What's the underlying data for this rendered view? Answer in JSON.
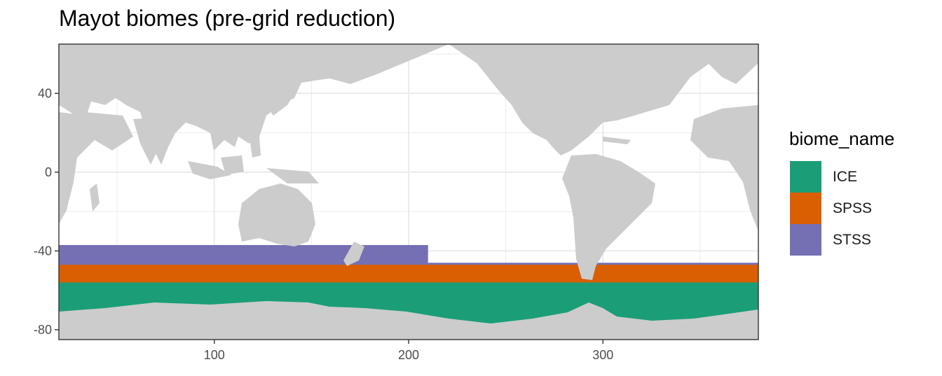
{
  "title": "Mayot biomes (pre-grid reduction)",
  "map": {
    "x_range": [
      20,
      380
    ],
    "y_range": [
      -85,
      65
    ],
    "x_ticks": [
      100,
      200,
      300
    ],
    "y_ticks": [
      40,
      0,
      -40,
      -80
    ],
    "x_tick_labels": [
      "100",
      "200",
      "300"
    ],
    "y_tick_labels": [
      "40",
      "0",
      "-40",
      "-80"
    ],
    "land_color": "#cccccc",
    "grid": true,
    "panel_border": true
  },
  "biome_bands": [
    {
      "name": "STSS",
      "lon_range": [
        20,
        210
      ],
      "lat_range": [
        -48,
        -37
      ],
      "color": "#7570b3"
    },
    {
      "name": "STSS",
      "lon_range": [
        210,
        380
      ],
      "lat_range": [
        -55,
        -46
      ],
      "color": "#7570b3"
    },
    {
      "name": "SPSS",
      "lon_range": [
        20,
        380
      ],
      "lat_range": [
        -62,
        -47
      ],
      "color": "#d95f02"
    },
    {
      "name": "ICE",
      "lon_range": [
        20,
        380
      ],
      "lat_range": [
        -80,
        -56
      ],
      "color": "#1b9e77"
    }
  ],
  "legend": {
    "title": "biome_name",
    "position": "right",
    "items": [
      {
        "label": "ICE",
        "color": "#1b9e77"
      },
      {
        "label": "SPSS",
        "color": "#d95f02"
      },
      {
        "label": "STSS",
        "color": "#7570b3"
      }
    ]
  }
}
